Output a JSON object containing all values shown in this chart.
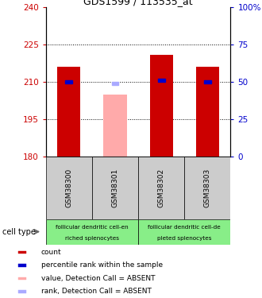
{
  "title": "GDS1599 / 113535_at",
  "samples": [
    "GSM38300",
    "GSM38301",
    "GSM38302",
    "GSM38303"
  ],
  "bar_values": [
    216,
    205,
    221,
    216
  ],
  "bar_colors": [
    "#cc0000",
    "#ffaaaa",
    "#cc0000",
    "#cc0000"
  ],
  "rank_values": [
    50,
    49,
    51,
    50
  ],
  "rank_colors": [
    "#0000cc",
    "#aaaaff",
    "#0000cc",
    "#0000cc"
  ],
  "y_min": 180,
  "y_max": 240,
  "y_ticks": [
    180,
    195,
    210,
    225,
    240
  ],
  "right_ticks": [
    0,
    25,
    50,
    75,
    100
  ],
  "right_tick_labels": [
    "0",
    "25",
    "50",
    "75",
    "100%"
  ],
  "dotted_lines": [
    195,
    210,
    225
  ],
  "cell_type_groups": [
    {
      "label1": "follicular dendritic cell-en",
      "label2": "riched splenocytes",
      "color": "#88ee88"
    },
    {
      "label1": "follicular dendritic cell-de",
      "label2": "pleted splenocytes",
      "color": "#88ee88"
    }
  ],
  "legend_items": [
    {
      "color": "#cc0000",
      "label": "count"
    },
    {
      "color": "#0000cc",
      "label": "percentile rank within the sample"
    },
    {
      "color": "#ffaaaa",
      "label": "value, Detection Call = ABSENT"
    },
    {
      "color": "#aaaaff",
      "label": "rank, Detection Call = ABSENT"
    }
  ],
  "bar_width": 0.5,
  "left_label_color": "#cc0000",
  "right_label_color": "#0000cc",
  "bg_color": "#ffffff"
}
